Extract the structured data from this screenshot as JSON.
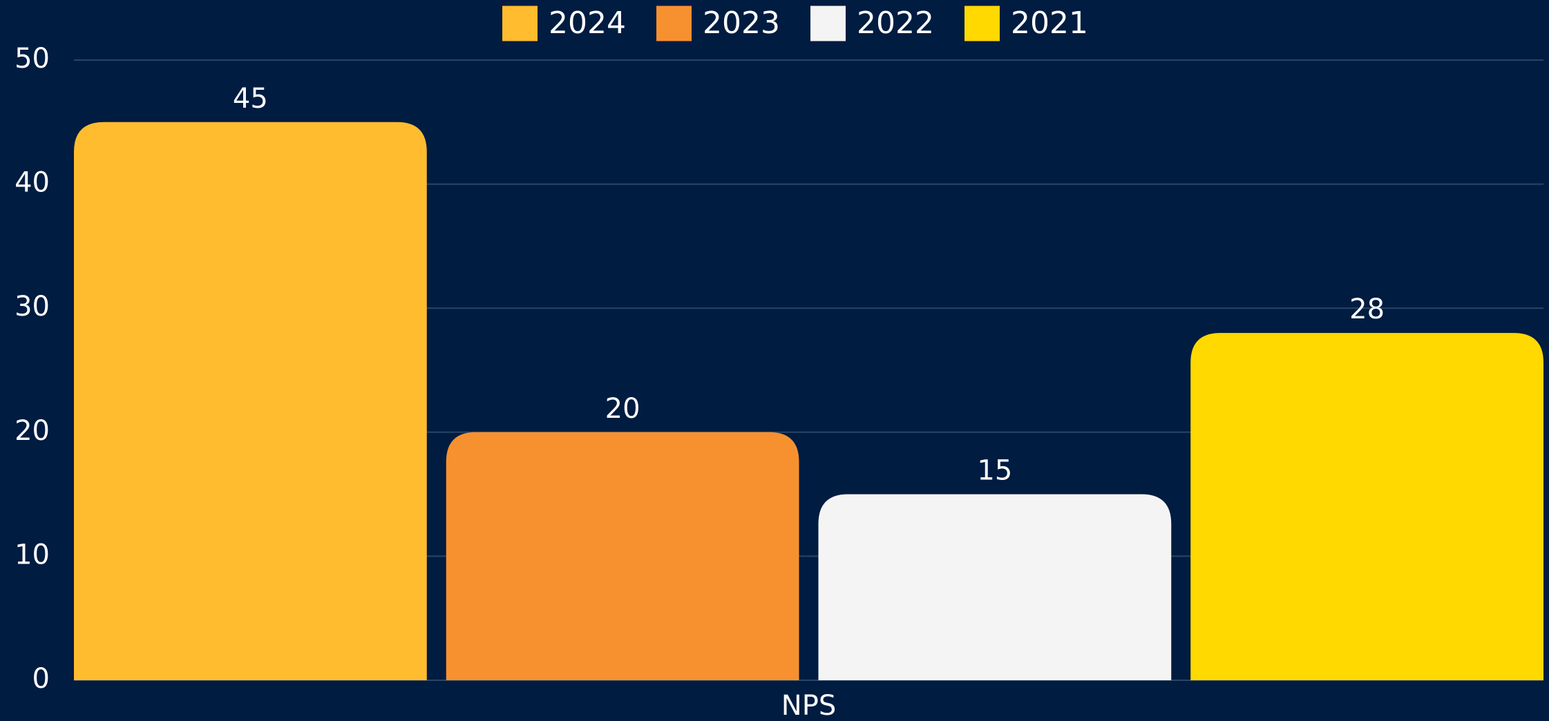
{
  "chart_data": {
    "type": "bar",
    "categories": [
      "NPS"
    ],
    "series": [
      {
        "name": "2024",
        "color": "#FFBC2E",
        "values": [
          45
        ]
      },
      {
        "name": "2023",
        "color": "#F7912F",
        "values": [
          20
        ]
      },
      {
        "name": "2022",
        "color": "#F4F4F4",
        "values": [
          15
        ]
      },
      {
        "name": "2021",
        "color": "#FFD900",
        "values": [
          28
        ]
      }
    ],
    "ylim": [
      0,
      50
    ],
    "yticks": [
      0,
      10,
      20,
      30,
      40,
      50
    ],
    "grid": true,
    "legend": "top"
  }
}
